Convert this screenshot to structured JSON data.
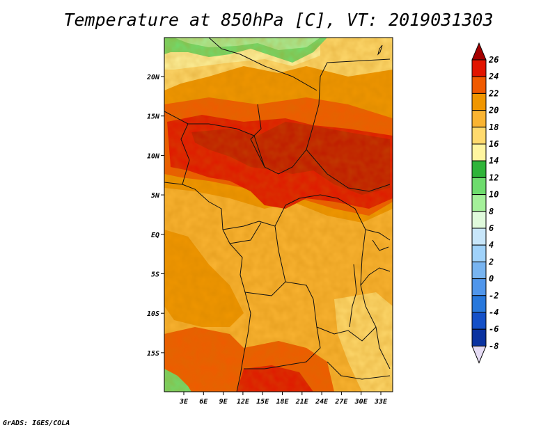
{
  "title": "Temperature at 850hPa [C], VT: 2019031303",
  "credit": "GrADS: IGES/COLA",
  "map": {
    "lat_labels": [
      "20N",
      "15N",
      "10N",
      "5N",
      "EQ",
      "5S",
      "10S",
      "15S"
    ],
    "lon_labels": [
      "3E",
      "6E",
      "9E",
      "12E",
      "15E",
      "18E",
      "21E",
      "24E",
      "27E",
      "30E",
      "33E"
    ]
  },
  "colorbar": {
    "labels": [
      "26",
      "24",
      "22",
      "20",
      "18",
      "16",
      "14",
      "12",
      "10",
      "8",
      "6",
      "4",
      "2",
      "0",
      "-2",
      "-4",
      "-6",
      "-8"
    ],
    "colors": [
      "#a50000",
      "#e11400",
      "#f05a00",
      "#f09600",
      "#fab432",
      "#ffda6e",
      "#fff5a0",
      "#2fb43a",
      "#6edc6e",
      "#a4f09a",
      "#e0fadc",
      "#c8e6fa",
      "#a0d2fa",
      "#78b4f0",
      "#5096eb",
      "#2878dc",
      "#1450c8",
      "#0a32a0",
      "#1e1464",
      "#e6dcf5"
    ]
  }
}
